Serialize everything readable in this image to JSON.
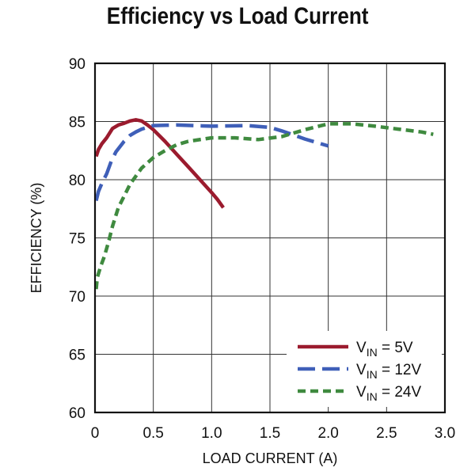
{
  "chart_data": {
    "type": "line",
    "title": "Efficiency vs Load Current",
    "xlabel": "LOAD CURRENT (A)",
    "ylabel": "EFFICIENCY (%)",
    "xlim": [
      0,
      3.0
    ],
    "ylim": [
      60,
      90
    ],
    "x_ticks": [
      "0",
      "0.5",
      "1.0",
      "1.5",
      "2.0",
      "2.5",
      "3.0"
    ],
    "y_ticks": [
      "60",
      "65",
      "70",
      "75",
      "80",
      "85",
      "90"
    ],
    "grid": true,
    "legend_position": "bottom-right",
    "series": [
      {
        "name": "VIN = 5V",
        "legend_main": "V",
        "legend_sub": "IN",
        "legend_rest": " = 5V",
        "color": "#9b1b2e",
        "style": "solid",
        "points": [
          [
            0.01,
            82.0
          ],
          [
            0.03,
            82.6
          ],
          [
            0.06,
            83.1
          ],
          [
            0.1,
            83.6
          ],
          [
            0.15,
            84.4
          ],
          [
            0.2,
            84.7
          ],
          [
            0.25,
            84.85
          ],
          [
            0.3,
            85.05
          ],
          [
            0.35,
            85.15
          ],
          [
            0.4,
            85.05
          ],
          [
            0.45,
            84.7
          ],
          [
            0.5,
            84.3
          ],
          [
            0.6,
            83.3
          ],
          [
            0.7,
            82.2
          ],
          [
            0.8,
            81.1
          ],
          [
            0.9,
            80.0
          ],
          [
            1.0,
            78.9
          ],
          [
            1.05,
            78.3
          ],
          [
            1.1,
            77.6
          ]
        ]
      },
      {
        "name": "VIN = 12V",
        "legend_main": "V",
        "legend_sub": "IN",
        "legend_rest": " = 12V",
        "color": "#3f5fb8",
        "style": "dashed",
        "points": [
          [
            0.01,
            78.2
          ],
          [
            0.03,
            79.0
          ],
          [
            0.06,
            79.7
          ],
          [
            0.1,
            80.5
          ],
          [
            0.14,
            81.6
          ],
          [
            0.18,
            82.4
          ],
          [
            0.25,
            83.3
          ],
          [
            0.3,
            83.8
          ],
          [
            0.35,
            84.1
          ],
          [
            0.4,
            84.35
          ],
          [
            0.5,
            84.65
          ],
          [
            0.7,
            84.7
          ],
          [
            1.0,
            84.6
          ],
          [
            1.3,
            84.65
          ],
          [
            1.5,
            84.5
          ],
          [
            1.6,
            84.2
          ],
          [
            1.7,
            83.85
          ],
          [
            1.8,
            83.5
          ],
          [
            1.9,
            83.2
          ],
          [
            2.0,
            82.9
          ]
        ]
      },
      {
        "name": "VIN = 24V",
        "legend_main": "V",
        "legend_sub": "IN",
        "legend_rest": " = 24V",
        "color": "#3f8a3f",
        "style": "dotted",
        "points": [
          [
            0.01,
            70.6
          ],
          [
            0.02,
            71.6
          ],
          [
            0.05,
            72.6
          ],
          [
            0.08,
            73.4
          ],
          [
            0.12,
            74.8
          ],
          [
            0.15,
            76.0
          ],
          [
            0.2,
            77.6
          ],
          [
            0.3,
            79.6
          ],
          [
            0.4,
            81.0
          ],
          [
            0.5,
            81.9
          ],
          [
            0.6,
            82.5
          ],
          [
            0.7,
            83.0
          ],
          [
            0.8,
            83.3
          ],
          [
            1.0,
            83.6
          ],
          [
            1.2,
            83.6
          ],
          [
            1.4,
            83.45
          ],
          [
            1.6,
            83.7
          ],
          [
            1.8,
            84.3
          ],
          [
            2.0,
            84.8
          ],
          [
            2.2,
            84.8
          ],
          [
            2.4,
            84.6
          ],
          [
            2.6,
            84.35
          ],
          [
            2.8,
            84.1
          ],
          [
            2.9,
            83.9
          ]
        ]
      }
    ]
  }
}
